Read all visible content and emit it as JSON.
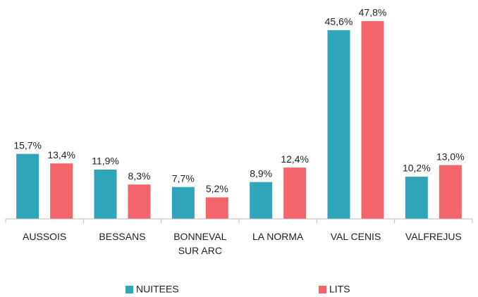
{
  "chart_data": {
    "type": "bar",
    "categories": [
      "AUSSOIS",
      "BESSANS",
      "BONNEVAL SUR ARC",
      "LA NORMA",
      "VAL CENIS",
      "VALFREJUS"
    ],
    "series": [
      {
        "name": "NUITEES",
        "color": "#2ea5b9",
        "values": [
          15.7,
          11.9,
          7.7,
          8.9,
          45.6,
          10.2
        ],
        "value_labels": [
          "15,7%",
          "11,9%",
          "7,7%",
          "8,9%",
          "45,6%",
          "10,2%"
        ]
      },
      {
        "name": "LITS",
        "color": "#f4646b",
        "values": [
          13.4,
          8.3,
          5.2,
          12.4,
          47.8,
          13.0
        ],
        "value_labels": [
          "13,4%",
          "8,3%",
          "5,2%",
          "12,4%",
          "47,8%",
          "13,0%"
        ]
      }
    ],
    "legend": "bottom"
  }
}
